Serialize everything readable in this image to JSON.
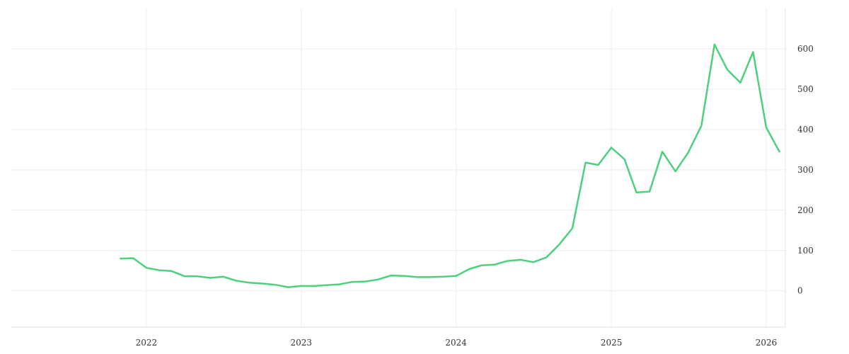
{
  "chart_data": {
    "type": "line",
    "title": "",
    "xlabel": "",
    "ylabel": "",
    "x_ticks": [
      "2022",
      "2023",
      "2024",
      "2025",
      "2026"
    ],
    "y_ticks": [
      0,
      100,
      200,
      300,
      400,
      500,
      600
    ],
    "xlim": [
      "2021-02-15",
      "2026-02-15"
    ],
    "ylim": [
      -90,
      700
    ],
    "grid": true,
    "y_axis_position": "right",
    "series": [
      {
        "color": "#4cd07d",
        "points": [
          [
            "2021-11-01",
            80
          ],
          [
            "2021-12-01",
            81
          ],
          [
            "2022-01-01",
            57
          ],
          [
            "2022-02-01",
            51
          ],
          [
            "2022-03-01",
            49
          ],
          [
            "2022-04-01",
            36
          ],
          [
            "2022-05-01",
            36
          ],
          [
            "2022-06-01",
            32
          ],
          [
            "2022-07-01",
            35
          ],
          [
            "2022-08-01",
            25
          ],
          [
            "2022-09-01",
            20
          ],
          [
            "2022-10-01",
            18
          ],
          [
            "2022-11-01",
            15
          ],
          [
            "2022-12-01",
            9
          ],
          [
            "2023-01-01",
            12
          ],
          [
            "2023-02-01",
            12
          ],
          [
            "2023-03-01",
            14
          ],
          [
            "2023-04-01",
            16
          ],
          [
            "2023-05-01",
            22
          ],
          [
            "2023-06-01",
            23
          ],
          [
            "2023-07-01",
            28
          ],
          [
            "2023-08-01",
            38
          ],
          [
            "2023-09-01",
            37
          ],
          [
            "2023-10-01",
            34
          ],
          [
            "2023-11-01",
            34
          ],
          [
            "2023-12-01",
            35
          ],
          [
            "2024-01-01",
            37
          ],
          [
            "2024-02-01",
            54
          ],
          [
            "2024-03-01",
            63
          ],
          [
            "2024-04-01",
            65
          ],
          [
            "2024-05-01",
            74
          ],
          [
            "2024-06-01",
            77
          ],
          [
            "2024-07-01",
            71
          ],
          [
            "2024-08-01",
            83
          ],
          [
            "2024-09-01",
            116
          ],
          [
            "2024-10-01",
            155
          ],
          [
            "2024-11-01",
            318
          ],
          [
            "2024-12-01",
            312
          ],
          [
            "2025-01-01",
            355
          ],
          [
            "2025-02-01",
            326
          ],
          [
            "2025-03-01",
            244
          ],
          [
            "2025-04-01",
            246
          ],
          [
            "2025-05-01",
            345
          ],
          [
            "2025-06-01",
            296
          ],
          [
            "2025-07-01",
            343
          ],
          [
            "2025-08-01",
            409
          ],
          [
            "2025-09-01",
            611
          ],
          [
            "2025-10-01",
            549
          ],
          [
            "2025-11-01",
            516
          ],
          [
            "2025-12-01",
            592
          ],
          [
            "2026-01-01",
            405
          ],
          [
            "2026-02-01",
            345
          ]
        ]
      }
    ]
  }
}
